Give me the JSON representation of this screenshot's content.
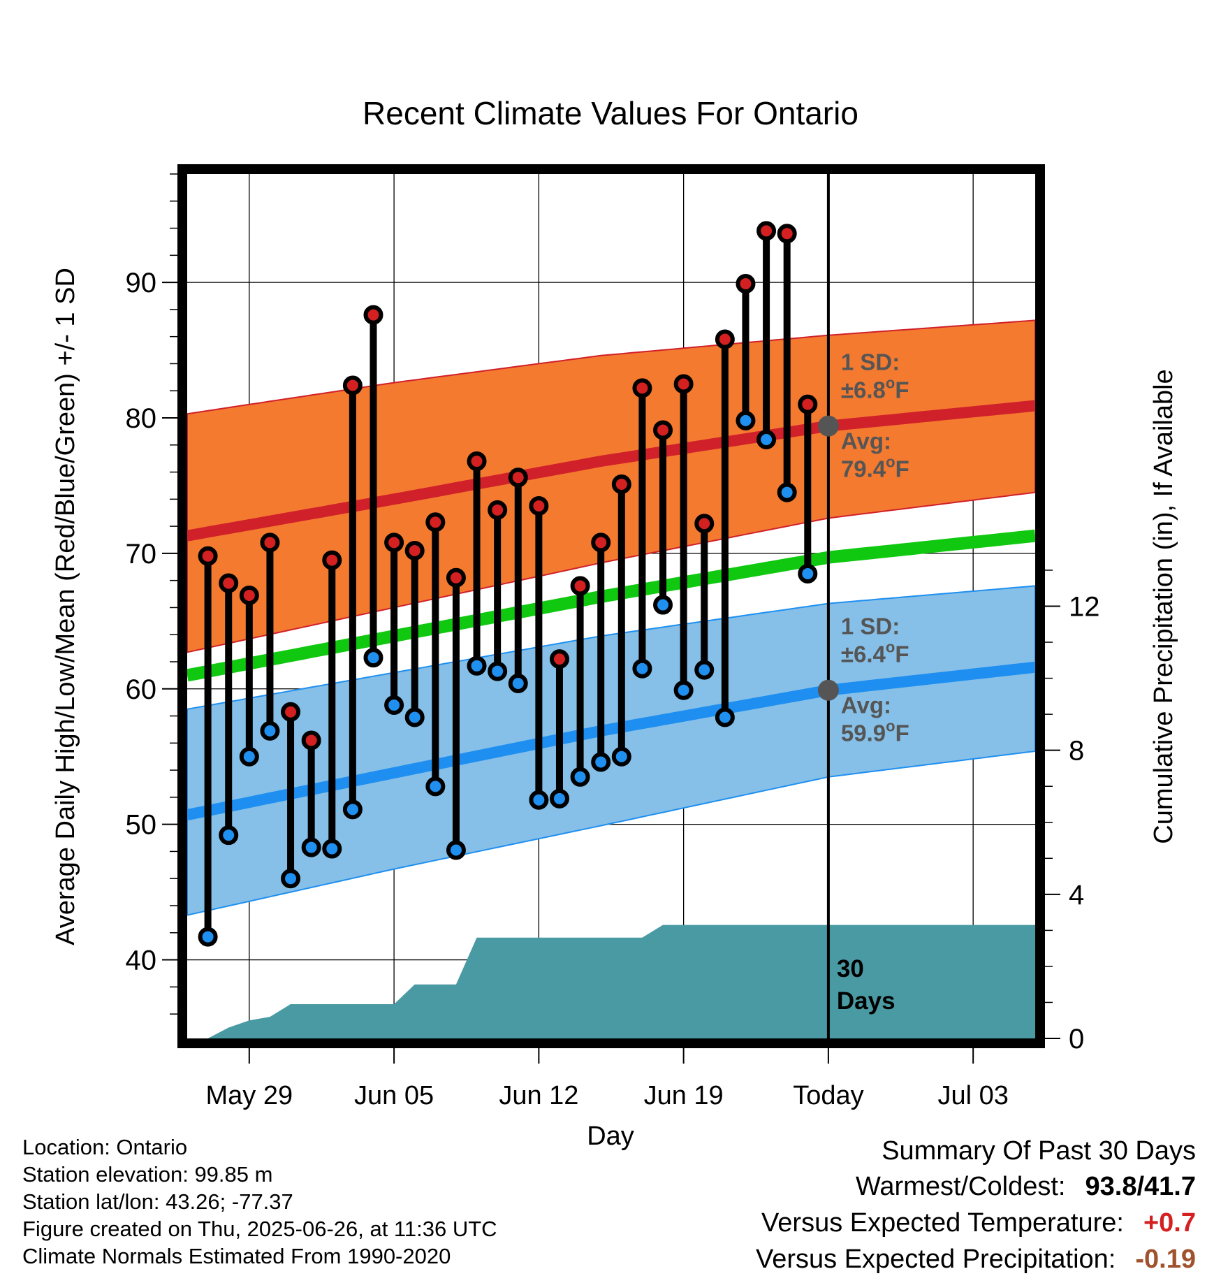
{
  "chart_data": {
    "type": "line",
    "title": "Recent Climate Values For Ontario",
    "xlabel": "Day",
    "ylabel": "Average Daily High/Low/Mean (Red/Blue/Green) +/- 1 SD",
    "y2label": "Cumulative Precipitation (in), If Available",
    "x_range": [
      "2025-05-26",
      "2025-07-06"
    ],
    "ylim": [
      34.2,
      98
    ],
    "y2lim": [
      0,
      24
    ],
    "x_ticks": [
      {
        "date": "2025-05-29",
        "label": "May 29"
      },
      {
        "date": "2025-06-05",
        "label": "Jun 05"
      },
      {
        "date": "2025-06-12",
        "label": "Jun 12"
      },
      {
        "date": "2025-06-19",
        "label": "Jun 19"
      },
      {
        "date": "2025-06-26",
        "label": "Today"
      },
      {
        "date": "2025-07-03",
        "label": "Jul 03"
      }
    ],
    "y_ticks": [
      40,
      50,
      60,
      70,
      80,
      90
    ],
    "y2_ticks": [
      0,
      4,
      8,
      12
    ],
    "grid": true,
    "today": "2025-06-26",
    "daily_obs": [
      {
        "date": "2025-05-27",
        "high": 69.8,
        "low": 41.7
      },
      {
        "date": "2025-05-28",
        "high": 67.8,
        "low": 49.2
      },
      {
        "date": "2025-05-29",
        "high": 66.9,
        "low": 55.0
      },
      {
        "date": "2025-05-30",
        "high": 70.8,
        "low": 56.9
      },
      {
        "date": "2025-05-31",
        "high": 58.3,
        "low": 46.0
      },
      {
        "date": "2025-06-01",
        "high": 56.2,
        "low": 48.3
      },
      {
        "date": "2025-06-02",
        "high": 69.5,
        "low": 48.2
      },
      {
        "date": "2025-06-03",
        "high": 82.4,
        "low": 51.1
      },
      {
        "date": "2025-06-04",
        "high": 87.6,
        "low": 62.3
      },
      {
        "date": "2025-06-05",
        "high": 70.8,
        "low": 58.8
      },
      {
        "date": "2025-06-06",
        "high": 70.2,
        "low": 57.9
      },
      {
        "date": "2025-06-07",
        "high": 72.3,
        "low": 52.8
      },
      {
        "date": "2025-06-08",
        "high": 68.2,
        "low": 48.1
      },
      {
        "date": "2025-06-09",
        "high": 76.8,
        "low": 61.7
      },
      {
        "date": "2025-06-10",
        "high": 73.2,
        "low": 61.3
      },
      {
        "date": "2025-06-11",
        "high": 75.6,
        "low": 60.4
      },
      {
        "date": "2025-06-12",
        "high": 73.5,
        "low": 51.8
      },
      {
        "date": "2025-06-13",
        "high": 62.2,
        "low": 51.9
      },
      {
        "date": "2025-06-14",
        "high": 67.6,
        "low": 53.5
      },
      {
        "date": "2025-06-15",
        "high": 70.8,
        "low": 54.6
      },
      {
        "date": "2025-06-16",
        "high": 75.1,
        "low": 55.0
      },
      {
        "date": "2025-06-17",
        "high": 82.2,
        "low": 61.5
      },
      {
        "date": "2025-06-18",
        "high": 79.1,
        "low": 66.2
      },
      {
        "date": "2025-06-19",
        "high": 82.5,
        "low": 59.9
      },
      {
        "date": "2025-06-20",
        "high": 72.2,
        "low": 61.4
      },
      {
        "date": "2025-06-21",
        "high": 85.8,
        "low": 57.9
      },
      {
        "date": "2025-06-22",
        "high": 89.9,
        "low": 79.8
      },
      {
        "date": "2025-06-23",
        "high": 93.8,
        "low": 78.4
      },
      {
        "date": "2025-06-24",
        "high": 93.6,
        "low": 74.5
      },
      {
        "date": "2025-06-25",
        "high": 81.0,
        "low": 68.5
      }
    ],
    "normals": {
      "dates": [
        "2025-05-26",
        "2025-06-05",
        "2025-06-15",
        "2025-06-26",
        "2025-07-06"
      ],
      "avg_high": [
        71.3,
        74.0,
        76.8,
        79.4,
        80.9
      ],
      "high_sd_upper": [
        80.3,
        82.6,
        84.6,
        86.1,
        87.2
      ],
      "high_sd_lower": [
        62.7,
        66.0,
        69.3,
        72.6,
        74.5
      ],
      "avg_mean": [
        61.0,
        63.9,
        66.8,
        69.7,
        71.3
      ],
      "avg_low": [
        50.7,
        53.8,
        56.9,
        59.9,
        61.6
      ],
      "low_sd_upper": [
        58.5,
        61.2,
        63.9,
        66.3,
        67.6
      ],
      "low_sd_lower": [
        43.3,
        46.7,
        49.9,
        53.5,
        55.4
      ]
    },
    "precip_cumulative": {
      "x": [
        "2025-05-27",
        "2025-05-28",
        "2025-05-29",
        "2025-05-30",
        "2025-05-31",
        "2025-06-05",
        "2025-06-06",
        "2025-06-08",
        "2025-06-09",
        "2025-06-17",
        "2025-06-18",
        "2025-06-26",
        "2025-07-06"
      ],
      "y": [
        0.0,
        0.3,
        0.5,
        0.6,
        0.95,
        0.95,
        1.5,
        1.5,
        2.8,
        2.8,
        3.15,
        3.15,
        3.15
      ]
    },
    "high_annotation": {
      "sd_label": "1 SD:",
      "sd_value": "±6.8",
      "avg_label": "Avg:",
      "avg_value": "79.4",
      "unit": "F"
    },
    "low_annotation": {
      "sd_label": "1 SD:",
      "sd_value": "±6.4",
      "avg_label": "Avg:",
      "avg_value": "59.9",
      "unit": "F"
    },
    "days_label_1": "30",
    "days_label_2": "Days",
    "colors": {
      "high_band": "#f47a30",
      "high_line": "#d0202a",
      "low_band": "#86c0e8",
      "low_line": "#1e8ff0",
      "mean_line": "#10c810",
      "precip": "#4a9aa3",
      "high_dot": "#d42020",
      "low_dot": "#2090f0",
      "annotation": "#555555"
    }
  },
  "station": {
    "location": "Location: Ontario",
    "elevation": "Station elevation: 99.85 m",
    "latlon": "Station lat/lon: 43.26; -77.37",
    "created": "Figure created on Thu, 2025-06-26, at 11:36 UTC",
    "normals": "Climate Normals Estimated From 1990-2020"
  },
  "summary": {
    "title": "Summary Of Past 30 Days",
    "warm_cold_label": "Warmest/Coldest:",
    "warmest": "93.8",
    "coldest": "41.7",
    "temp_label": "Versus Expected Temperature:",
    "temp_value": "+0.7",
    "temp_color": "#d42020",
    "precip_label": "Versus Expected Precipitation:",
    "precip_value": "-0.19",
    "precip_color": "#a0522d"
  }
}
